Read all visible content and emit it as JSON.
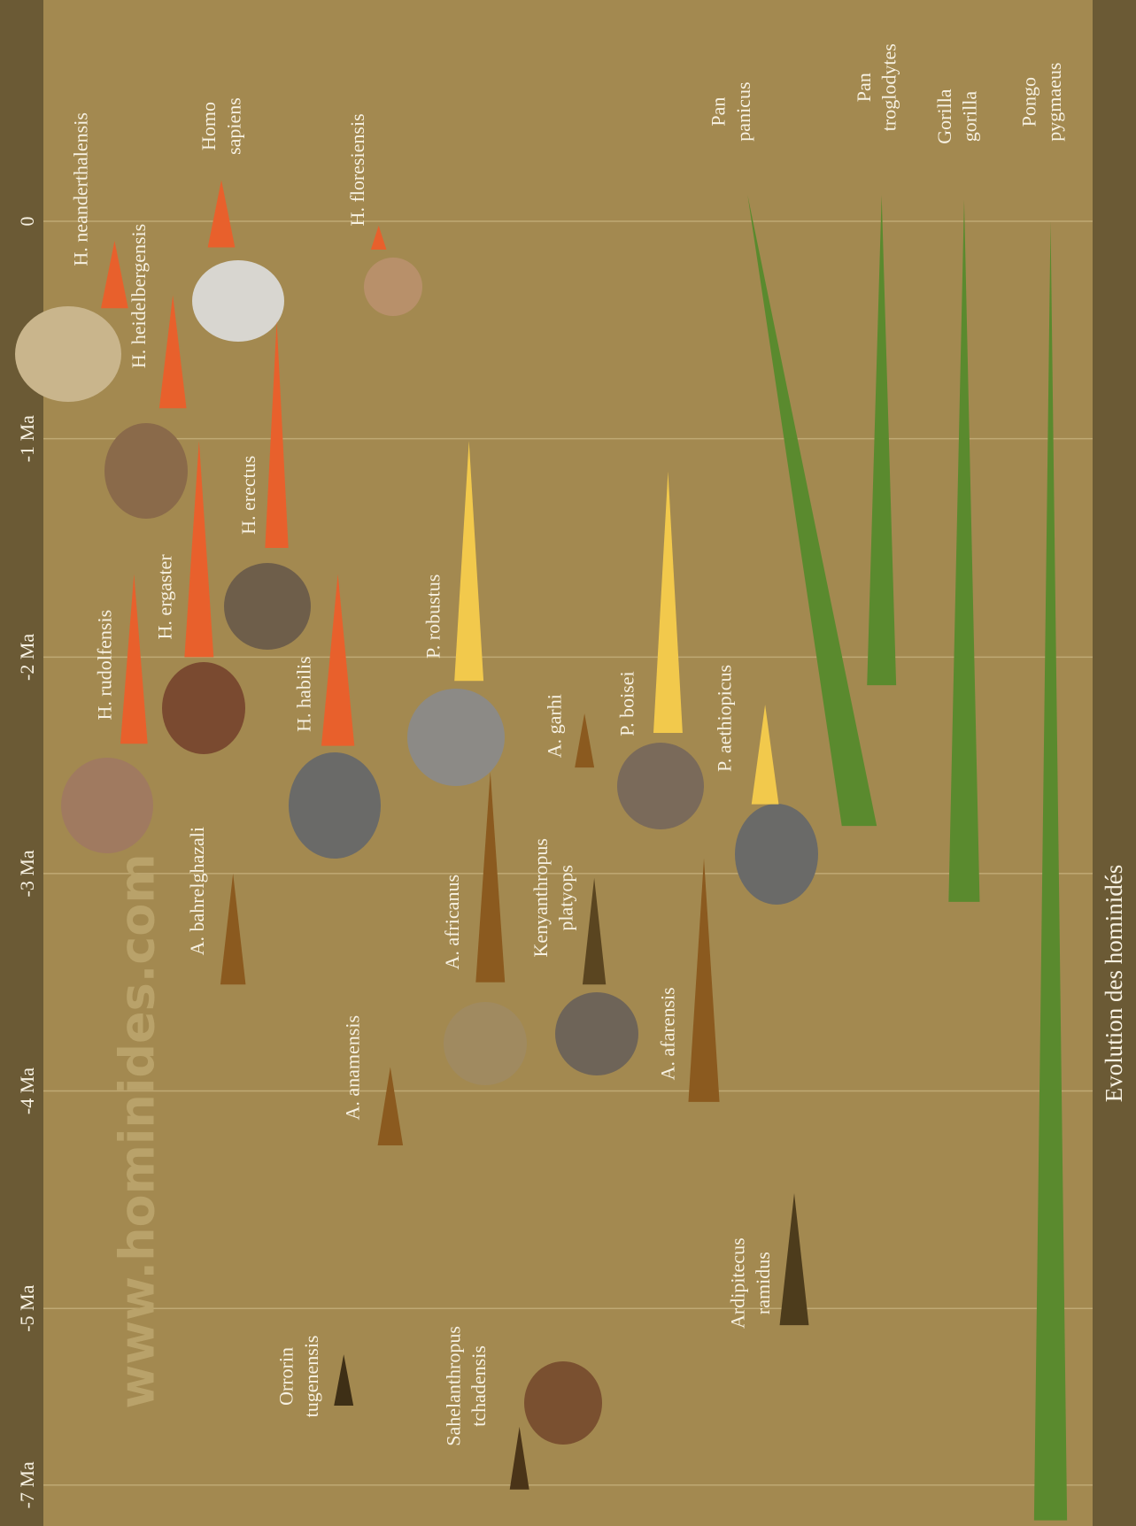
{
  "chart_data": {
    "type": "timeline",
    "title": "Evolution des hominidés",
    "watermark": "www.hominides.com",
    "ylim": [
      1,
      -7.4
    ],
    "yticks": [
      0,
      {
        "value": -1,
        "label": "-1 Ma"
      },
      {
        "value": -2,
        "label": "-2 Ma"
      },
      {
        "value": -3,
        "label": "-3 Ma"
      },
      {
        "value": -4,
        "label": "-4 Ma"
      },
      {
        "value": -5,
        "label": "-5 Ma"
      },
      {
        "value": -7,
        "label": "-7 Ma"
      }
    ],
    "grid": true,
    "taxa": [
      {
        "name": [
          "H. neanderthalensis"
        ],
        "from": -0.4,
        "to": -0.09,
        "color": "#e8602c"
      },
      {
        "name": [
          "H. heidelbergensis"
        ],
        "from": -0.86,
        "to": -0.34,
        "color": "#e8602c"
      },
      {
        "name": [
          "Homo",
          "sapiens"
        ],
        "from": -0.12,
        "to": 0.19,
        "color": "#e8602c"
      },
      {
        "name": [
          "H. floresiensis"
        ],
        "from": -0.13,
        "to": -0.02,
        "color": "#e8602c"
      },
      {
        "name": [
          "H. erectus"
        ],
        "from": -1.5,
        "to": -0.46,
        "color": "#e8602c"
      },
      {
        "name": [
          "H. ergaster"
        ],
        "from": -2.0,
        "to": -1.01,
        "color": "#e8602c"
      },
      {
        "name": [
          "H. rudolfensis"
        ],
        "from": -2.4,
        "to": -1.62,
        "color": "#e8602c"
      },
      {
        "name": [
          "H. habilis"
        ],
        "from": -2.41,
        "to": -1.62,
        "color": "#e8602c"
      },
      {
        "name": [
          "P. robustus"
        ],
        "from": -2.11,
        "to": -1.01,
        "color": "#f2c94c"
      },
      {
        "name": [
          "P. boisei"
        ],
        "from": -2.35,
        "to": -1.15,
        "color": "#f2c94c"
      },
      {
        "name": [
          "P. aethiopicus"
        ],
        "from": -2.68,
        "to": -2.22,
        "color": "#f2c94c"
      },
      {
        "name": [
          "A. garhi"
        ],
        "from": -2.51,
        "to": -2.26,
        "color": "#8b5a1f"
      },
      {
        "name": [
          "A. bahrelghazali"
        ],
        "from": -3.51,
        "to": -3.0,
        "color": "#8b5a1f"
      },
      {
        "name": [
          "A. africanus"
        ],
        "from": -3.5,
        "to": -2.53,
        "color": "#8b5a1f"
      },
      {
        "name": [
          "Kenyanthropus",
          "platyops"
        ],
        "from": -3.51,
        "to": -3.02,
        "color": "#5a4520"
      },
      {
        "name": [
          "A. afarensis"
        ],
        "from": -4.05,
        "to": -2.93,
        "color": "#8b5a1f"
      },
      {
        "name": [
          "A. anamensis"
        ],
        "from": -4.25,
        "to": -3.89,
        "color": "#8b5a1f"
      },
      {
        "name": [
          "Ardipitecus",
          "ramidus"
        ],
        "from": -5.19,
        "to": -4.47,
        "color": "#4d3c1c"
      },
      {
        "name": [
          "Orrorin",
          "tugenensis"
        ],
        "from": -6.1,
        "to": -5.52,
        "color": "#3e2f16"
      },
      {
        "name": [
          "Sahelanthropus",
          "tchadensis"
        ],
        "from": -7.05,
        "to": -6.34,
        "color": "#4a3418"
      },
      {
        "name": [
          "Pan",
          "panicus"
        ],
        "from": -2.78,
        "to": 0.12,
        "color": "#5a8a2e"
      },
      {
        "name": [
          "Pan",
          "troglodytes"
        ],
        "from": -2.13,
        "to": 0.12,
        "color": "#5a8a2e"
      },
      {
        "name": [
          "Gorilla",
          "gorilla"
        ],
        "from": -3.13,
        "to": 0.1,
        "color": "#5a8a2e"
      },
      {
        "name": [
          "Pongo",
          "pygmaeus"
        ],
        "from": -7.4,
        "to": 0.0,
        "color": "#5a8a2e"
      }
    ]
  }
}
